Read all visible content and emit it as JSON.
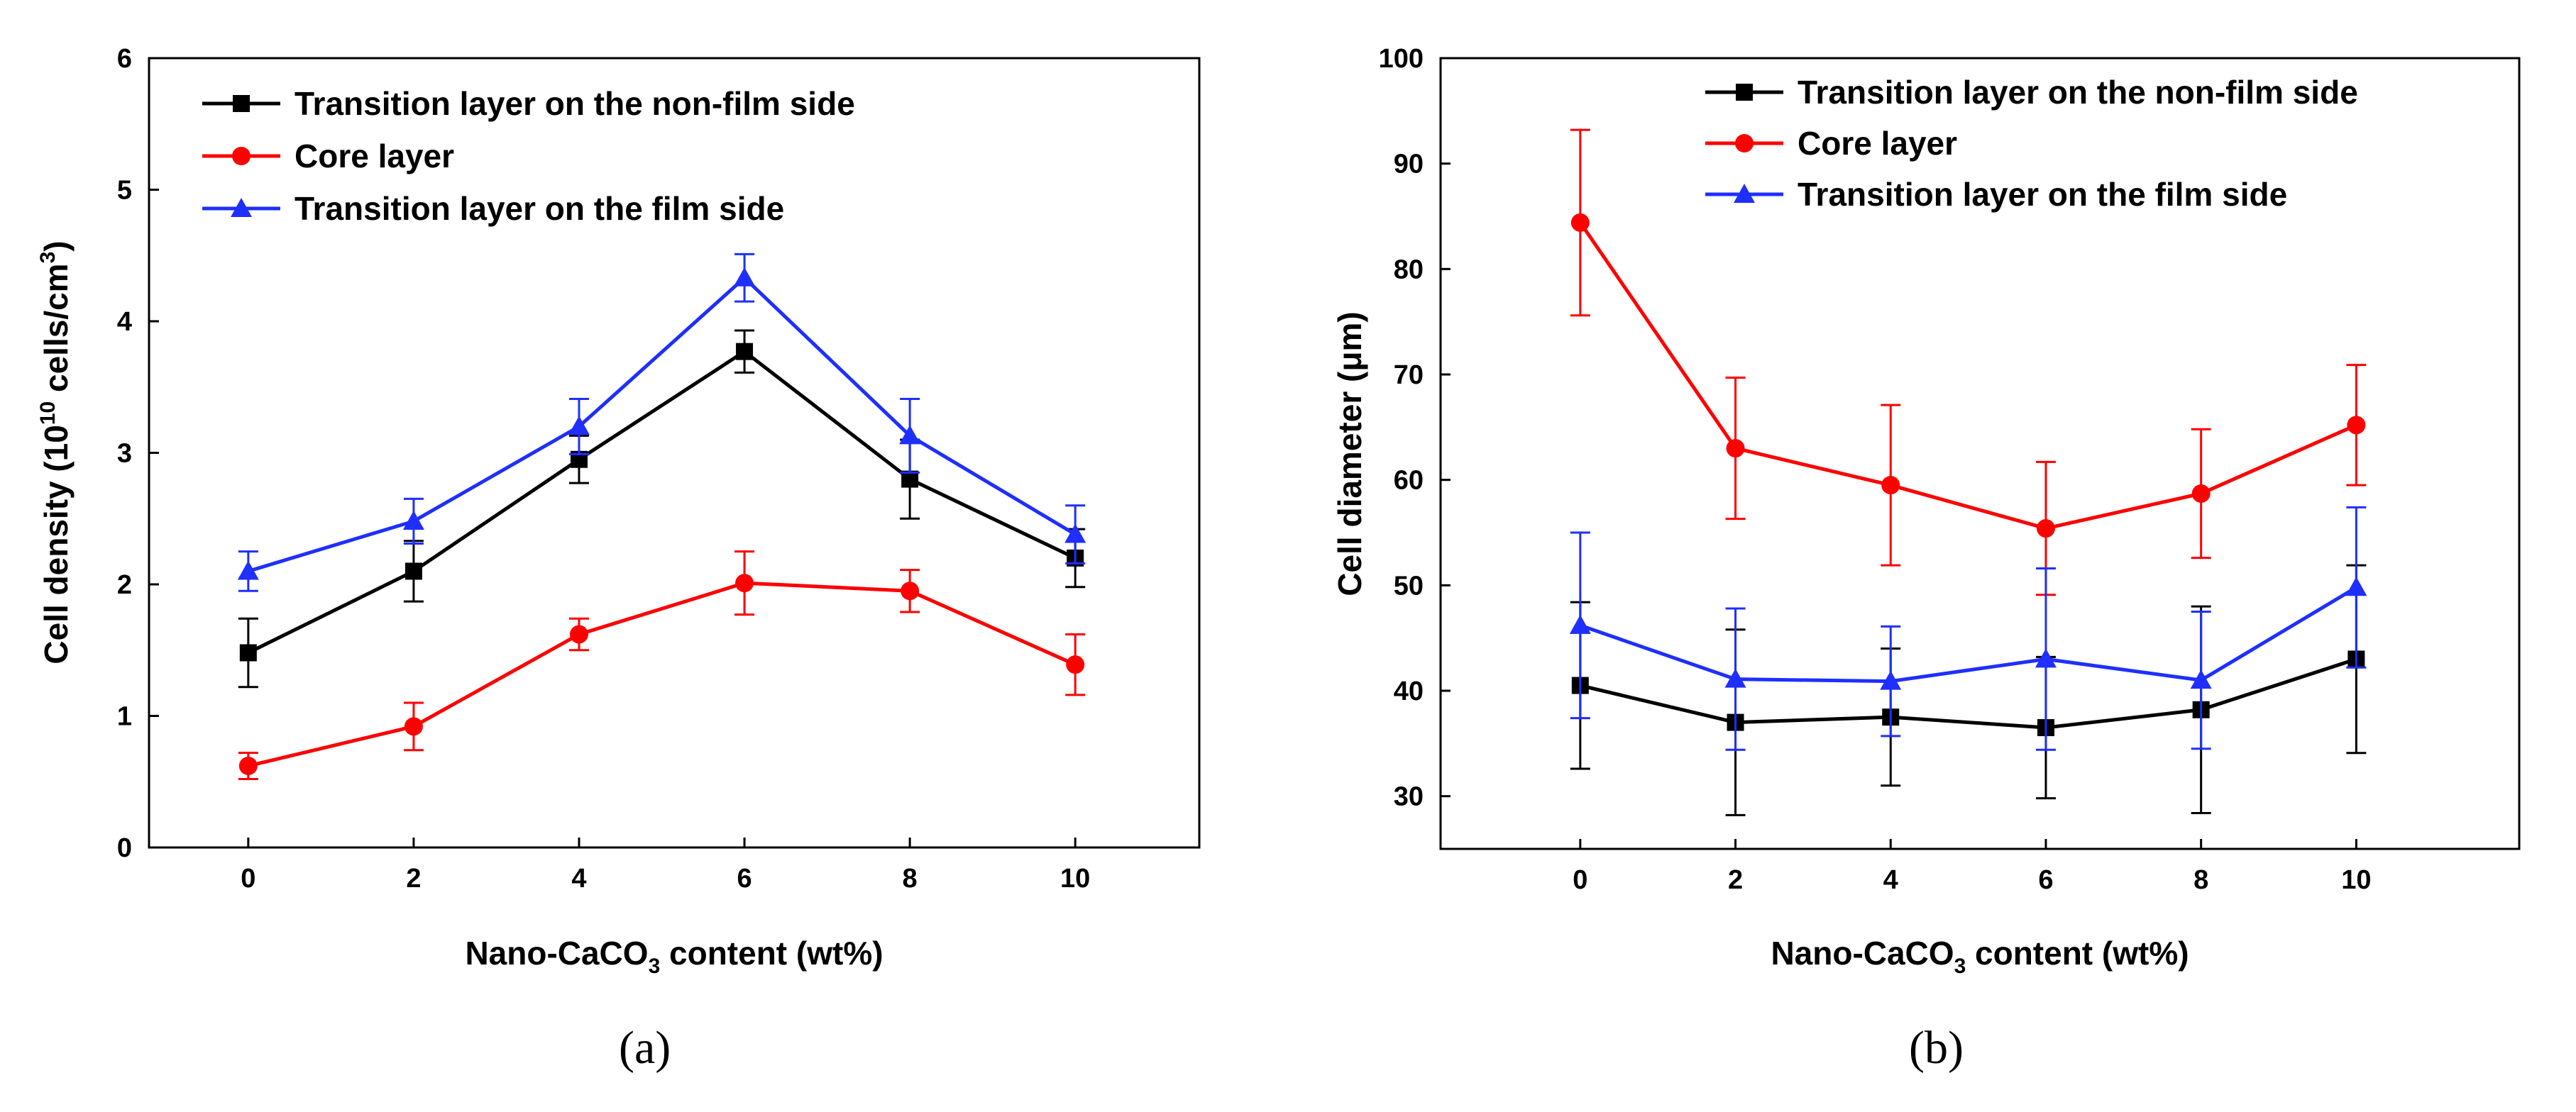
{
  "figure": {
    "labels": [
      "(a)",
      "(b)"
    ]
  },
  "colors": {
    "black": "#000000",
    "red": "#ff0000",
    "blue": "#1e2fff"
  },
  "chart_data": [
    {
      "type": "line",
      "panel": "(a)",
      "xlabel": "Nano-CaCO3 content (wt%)",
      "xlabel_parts": [
        "Nano-CaCO",
        "3",
        " content (wt%)"
      ],
      "ylabel": "Cell density (10^10 cells/cm^3)",
      "ylabel_parts": [
        "Cell density (10",
        "10",
        " cells/cm",
        "3",
        ")"
      ],
      "xlim": [
        -1.2,
        11.5
      ],
      "ylim": [
        0,
        6
      ],
      "xticks": [
        0,
        2,
        4,
        6,
        8,
        10
      ],
      "yticks": [
        0,
        1,
        2,
        3,
        4,
        5,
        6
      ],
      "x": [
        0,
        2,
        4,
        6,
        8,
        10
      ],
      "legend_position": "top-left",
      "series": [
        {
          "name": "Transition layer on the non-film side",
          "color": "#000000",
          "marker": "square",
          "values": [
            1.48,
            2.1,
            2.95,
            3.77,
            2.8,
            2.2
          ],
          "errors": [
            0.26,
            0.23,
            0.18,
            0.16,
            0.3,
            0.22
          ]
        },
        {
          "name": "Core layer",
          "color": "#ff0000",
          "marker": "circle",
          "values": [
            0.62,
            0.92,
            1.62,
            2.01,
            1.95,
            1.39
          ],
          "errors": [
            0.1,
            0.18,
            0.12,
            0.24,
            0.16,
            0.23
          ]
        },
        {
          "name": "Transition layer on the film side",
          "color": "#1e2fff",
          "marker": "triangle",
          "values": [
            2.1,
            2.48,
            3.2,
            4.33,
            3.13,
            2.38
          ],
          "errors": [
            0.15,
            0.17,
            0.21,
            0.18,
            0.28,
            0.22
          ]
        }
      ]
    },
    {
      "type": "line",
      "panel": "(b)",
      "xlabel": "Nano-CaCO3 content (wt%)",
      "xlabel_parts": [
        "Nano-CaCO",
        "3",
        " content (wt%)"
      ],
      "ylabel": "Cell diameter (μm)",
      "ylabel_parts": [
        "Cell diameter (μm)"
      ],
      "xlim": [
        -1.8,
        12.1
      ],
      "ylim": [
        25,
        100
      ],
      "xticks": [
        0,
        2,
        4,
        6,
        8,
        10
      ],
      "yticks": [
        30,
        40,
        50,
        60,
        70,
        80,
        90,
        100
      ],
      "x": [
        0,
        2,
        4,
        6,
        8,
        10
      ],
      "legend_position": "top-right",
      "series": [
        {
          "name": "Transition layer on the non-film side",
          "color": "#000000",
          "marker": "square",
          "values": [
            40.5,
            37.0,
            37.5,
            36.5,
            38.2,
            43.0
          ],
          "errors": [
            7.9,
            8.8,
            6.5,
            6.7,
            9.8,
            8.9
          ]
        },
        {
          "name": "Core layer",
          "color": "#ff0000",
          "marker": "circle",
          "values": [
            84.4,
            63.0,
            59.5,
            55.4,
            58.7,
            65.2
          ],
          "errors": [
            8.8,
            6.7,
            7.6,
            6.3,
            6.1,
            5.7
          ]
        },
        {
          "name": "Transition layer on the film side",
          "color": "#1e2fff",
          "marker": "triangle",
          "values": [
            46.2,
            41.1,
            40.9,
            43.0,
            41.0,
            49.8
          ],
          "errors": [
            8.8,
            6.7,
            5.2,
            8.6,
            6.5,
            7.6
          ]
        }
      ]
    }
  ]
}
